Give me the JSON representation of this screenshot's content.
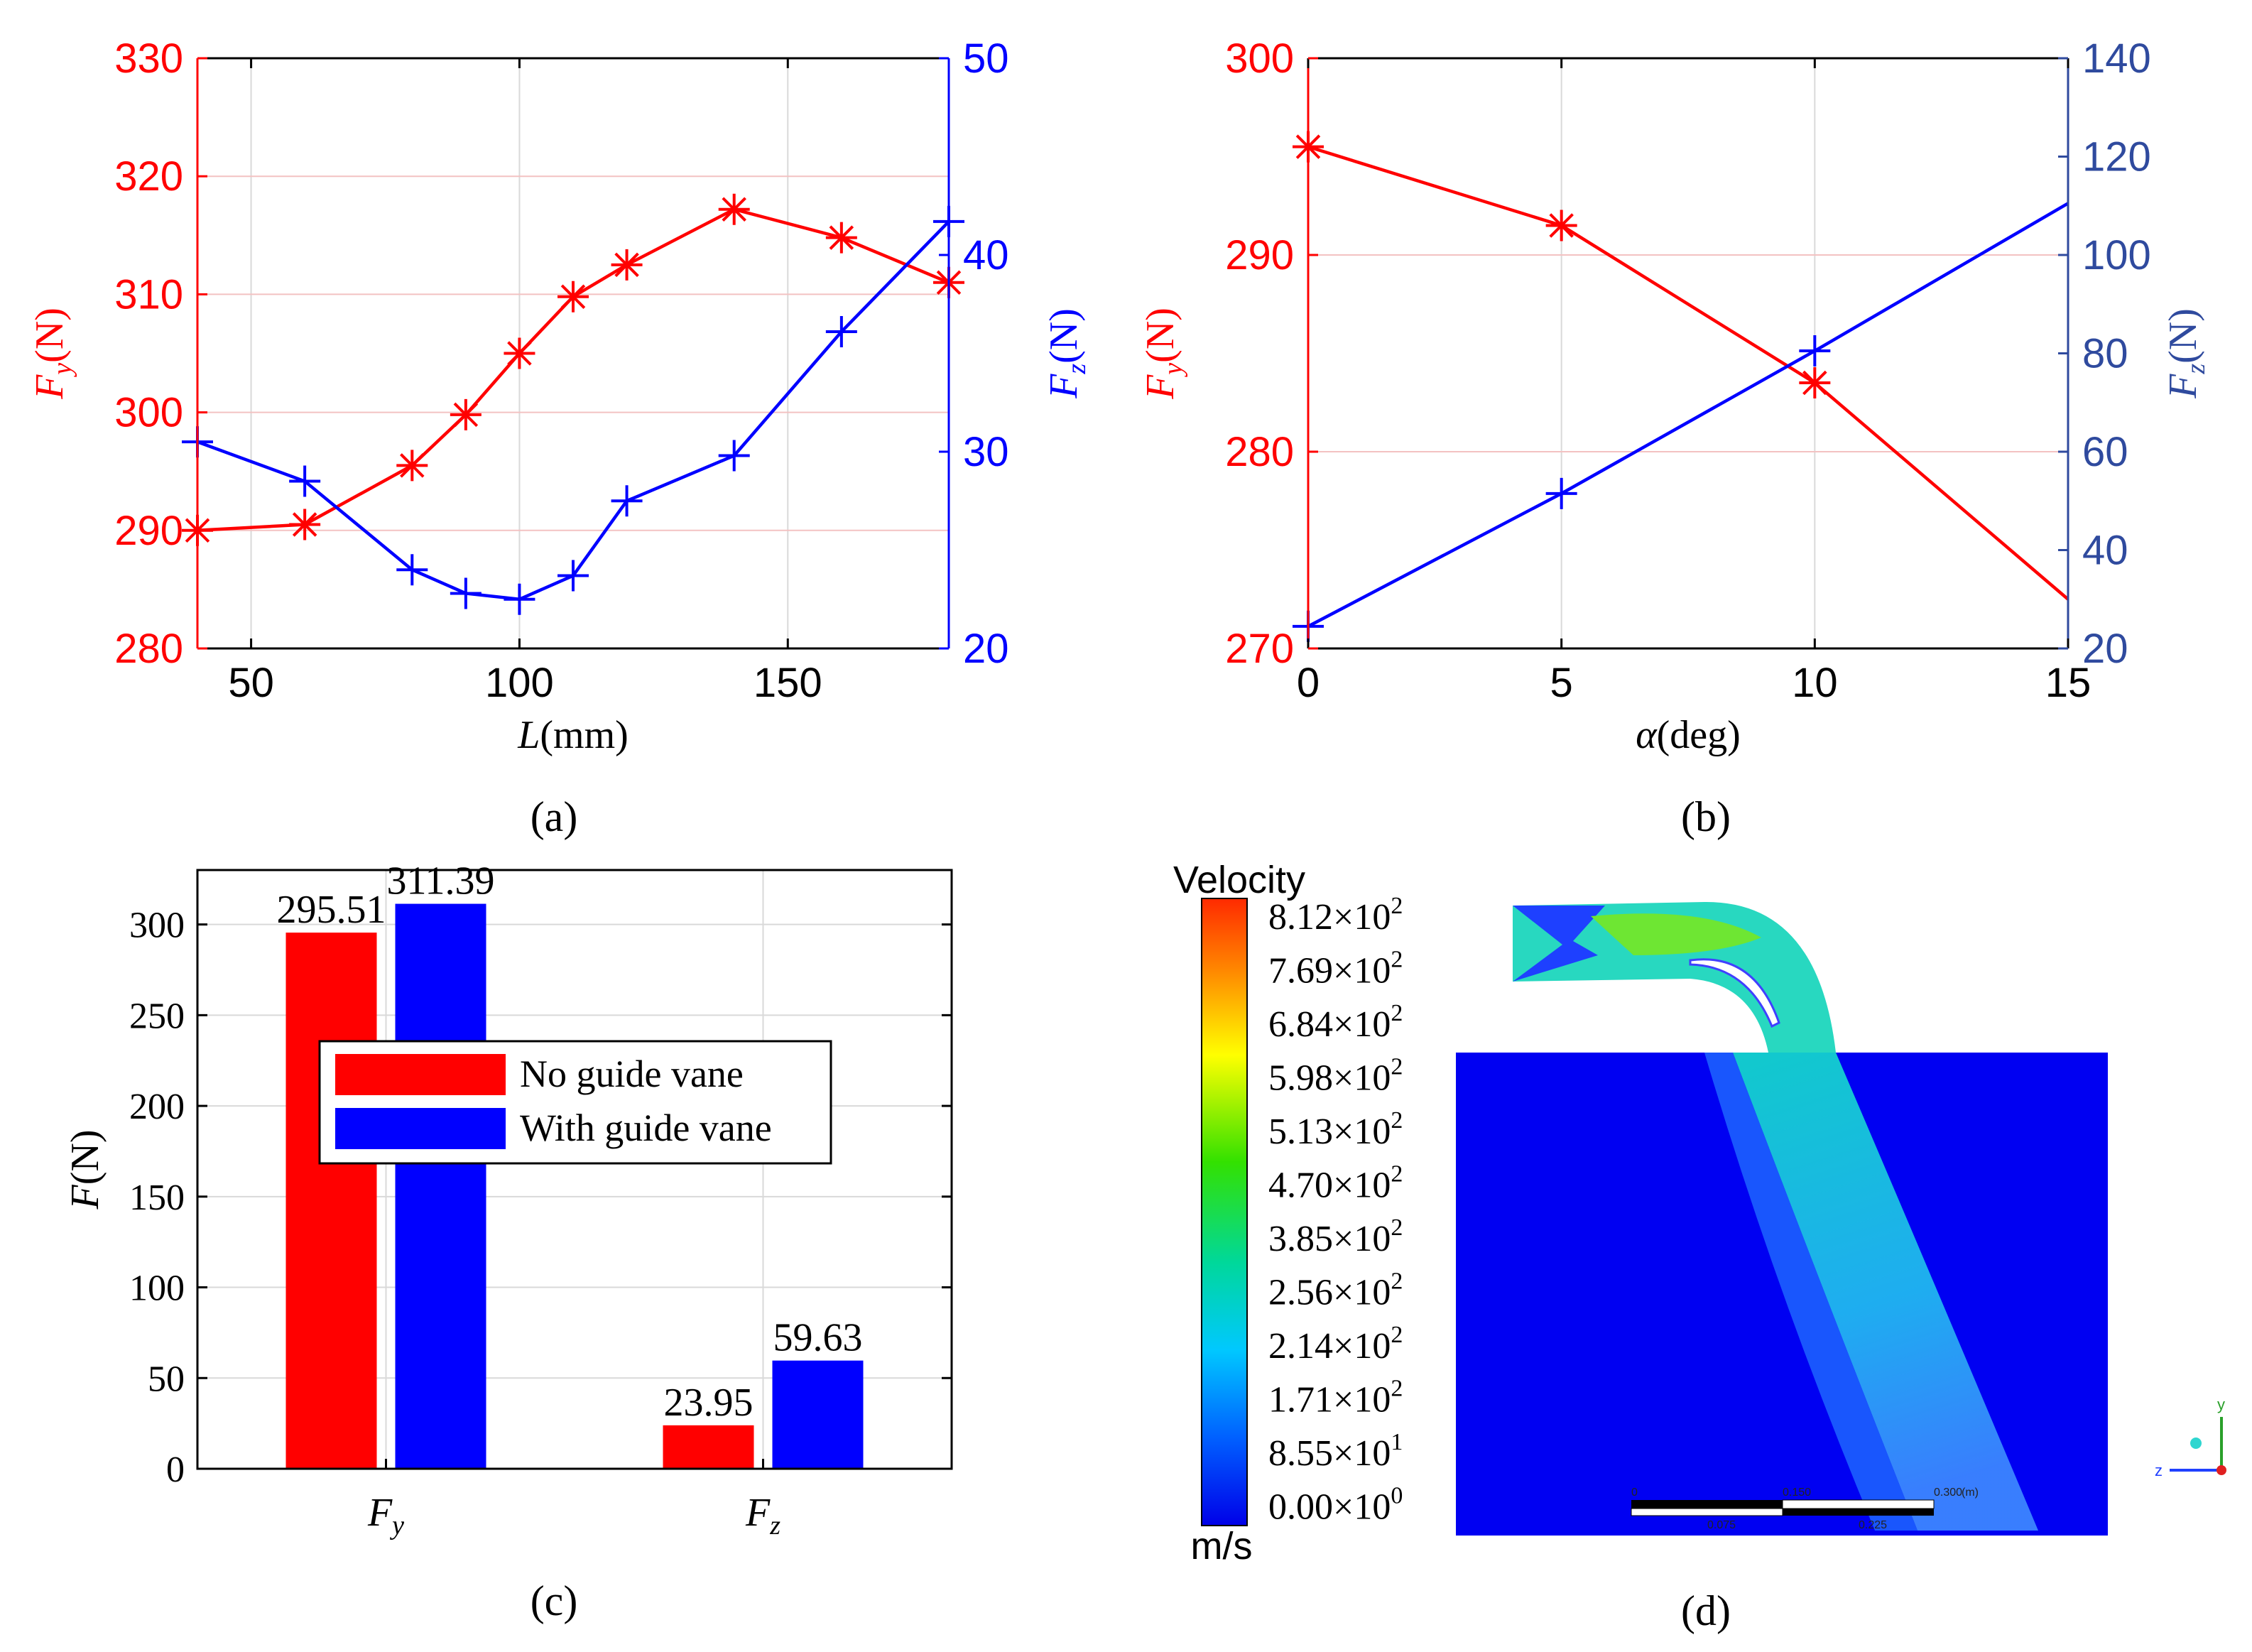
{
  "panel_labels": [
    "(a)",
    "(b)",
    "(c)",
    "(d)"
  ],
  "colors": {
    "red": "#ff0000",
    "blue": "#0000ff",
    "navy": "#2f4a9e",
    "black": "#000000"
  },
  "chart_data": [
    {
      "id": "a",
      "type": "line",
      "xlabel": "L(mm)",
      "xlabel_parts": {
        "var": "L",
        "unit": "(mm)"
      },
      "ylabel_left_parts": {
        "var": "F",
        "sub": "y",
        "unit": "(N)"
      },
      "ylabel_right_parts": {
        "var": "F",
        "sub": "z",
        "unit": "(N)"
      },
      "xlim": [
        40,
        180
      ],
      "xticks": [
        50,
        100,
        150
      ],
      "ylim_left": [
        280,
        330
      ],
      "yticks_left": [
        280,
        290,
        300,
        310,
        320,
        330
      ],
      "ylim_right": [
        20,
        50
      ],
      "yticks_right": [
        20,
        30,
        40,
        50
      ],
      "grid": true,
      "series": [
        {
          "axis": "left",
          "color": "#ff0000",
          "marker": "asterisk",
          "x": [
            40,
            60,
            80,
            90,
            100,
            110,
            120,
            140,
            160,
            180
          ],
          "y": [
            290,
            290.5,
            295.5,
            299.8,
            305,
            309.8,
            312.5,
            317.2,
            314.8,
            311
          ]
        },
        {
          "axis": "right",
          "color": "#0000ff",
          "marker": "plus",
          "x": [
            40,
            60,
            80,
            90,
            100,
            110,
            120,
            140,
            160,
            180
          ],
          "y": [
            30.5,
            28.5,
            24,
            22.8,
            22.5,
            23.7,
            27.5,
            29.8,
            36.1,
            41.7
          ]
        }
      ]
    },
    {
      "id": "b",
      "type": "line",
      "xlabel": "α(deg)",
      "xlabel_parts": {
        "var": "α",
        "unit": "(deg)"
      },
      "ylabel_left_parts": {
        "var": "F",
        "sub": "y",
        "unit": "(N)"
      },
      "ylabel_right_parts": {
        "var": "F",
        "sub": "z",
        "unit": "(N)"
      },
      "xlim": [
        0,
        15
      ],
      "xticks": [
        0,
        5,
        10,
        15
      ],
      "ylim_left": [
        270,
        300
      ],
      "yticks_left": [
        270,
        280,
        290,
        300
      ],
      "ylim_right": [
        20,
        140
      ],
      "yticks_right": [
        20,
        40,
        60,
        80,
        100,
        120,
        140
      ],
      "grid": true,
      "series": [
        {
          "axis": "left",
          "color": "#ff0000",
          "marker": "asterisk",
          "x": [
            0,
            5,
            10,
            15
          ],
          "y": [
            295.5,
            291.5,
            283.5,
            272.5
          ],
          "marked": [
            true,
            true,
            true,
            false
          ]
        },
        {
          "axis": "right",
          "color": "#0000ff",
          "marker": "plus",
          "x": [
            0,
            5,
            10,
            15
          ],
          "y": [
            24.5,
            51.5,
            80.5,
            110.5
          ],
          "marked": [
            true,
            true,
            true,
            false
          ]
        }
      ]
    },
    {
      "id": "c",
      "type": "bar",
      "categories": [
        "F_y",
        "F_z"
      ],
      "category_parts": [
        {
          "var": "F",
          "sub": "y"
        },
        {
          "var": "F",
          "sub": "z"
        }
      ],
      "ylabel_parts": {
        "var": "F",
        "unit": "(N)"
      },
      "ylim": [
        0,
        330
      ],
      "yticks": [
        0,
        50,
        100,
        150,
        200,
        250,
        300
      ],
      "grid": true,
      "legend": "center",
      "series": [
        {
          "name": "No guide vane",
          "color": "#ff0000",
          "values": [
            295.51,
            23.95
          ],
          "labels": [
            "295.51",
            "23.95"
          ]
        },
        {
          "name": "With guide vane",
          "color": "#0000ff",
          "values": [
            311.39,
            59.63
          ],
          "labels": [
            "311.39",
            "59.63"
          ]
        }
      ]
    },
    {
      "id": "d",
      "type": "heatmap",
      "colorbar_title": "Velocity",
      "colorbar_unit": "m/s",
      "colorbar_ticks": [
        {
          "mant": "8.12",
          "exp": "2"
        },
        {
          "mant": "7.69",
          "exp": "2"
        },
        {
          "mant": "6.84",
          "exp": "2"
        },
        {
          "mant": "5.98",
          "exp": "2"
        },
        {
          "mant": "5.13",
          "exp": "2"
        },
        {
          "mant": "4.70",
          "exp": "2"
        },
        {
          "mant": "3.85",
          "exp": "2"
        },
        {
          "mant": "2.56",
          "exp": "2"
        },
        {
          "mant": "2.14",
          "exp": "2"
        },
        {
          "mant": "1.71",
          "exp": "2"
        },
        {
          "mant": "8.55",
          "exp": "1"
        },
        {
          "mant": "0.00",
          "exp": "0"
        }
      ],
      "scale_bar": {
        "top_labels": [
          "0",
          "0.150",
          "0.300",
          "(m)"
        ],
        "bottom_labels": [
          "0.075",
          "0.225"
        ]
      },
      "triad_labels": [
        "y",
        "z"
      ]
    }
  ]
}
